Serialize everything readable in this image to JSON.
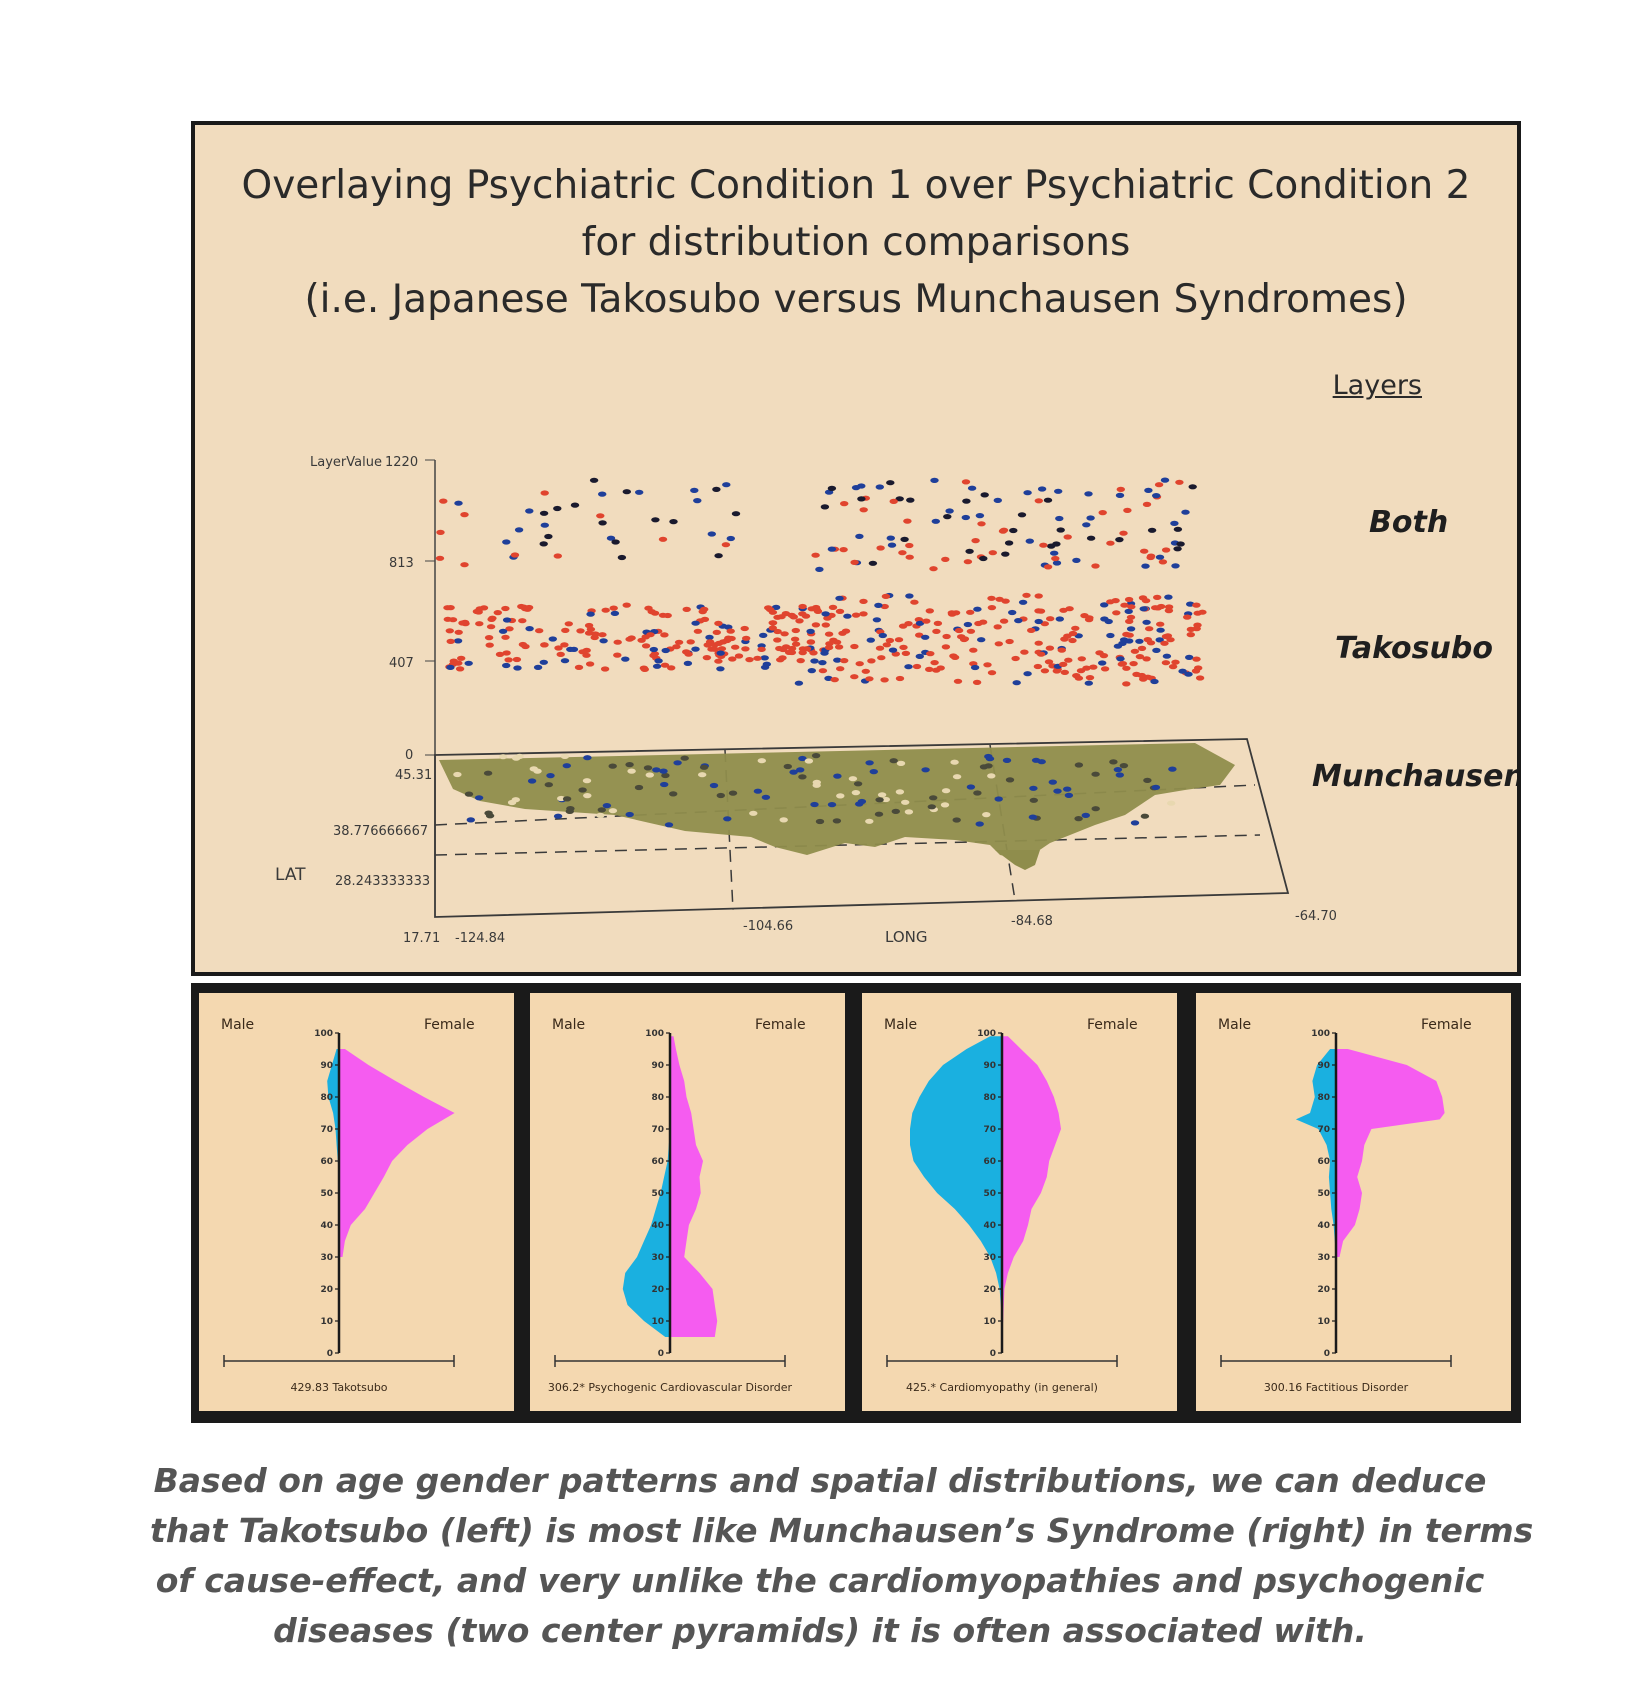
{
  "top_chart": {
    "title_lines": [
      "Overlaying Psychiatric Condition 1 over Psychiatric Condition 2",
      "for distribution comparisons",
      "(i.e. Japanese Takosubo versus Munchausen Syndromes)"
    ],
    "layers_heading": "Layers",
    "layer_labels": [
      "Both",
      "Takosubo",
      "Munchausen"
    ],
    "z_axis_label": "LayerValue",
    "z_ticks": [
      "1220",
      "813",
      "407",
      "0"
    ],
    "lat_label": "LAT",
    "lat_ticks": [
      "45.31",
      "38.776666667",
      "28.243333333",
      "17.71"
    ],
    "long_label": "LONG",
    "long_ticks": [
      "-124.84",
      "-104.66",
      "-84.68",
      "-64.70"
    ],
    "colors": {
      "red": "#e0442e",
      "blue": "#1f3f9a",
      "map": "#8f8d4c"
    }
  },
  "chart_data": [
    {
      "type": "scatter",
      "title": "Overlaying Psychiatric Condition 1 over Psychiatric Condition 2 for distribution comparisons (i.e. Japanese Takosubo versus Munchausen Syndromes)",
      "xlabel": "LONG",
      "ylabel": "LAT",
      "zlabel": "LayerValue",
      "x_ticks": [
        -124.84,
        -104.66,
        -84.68,
        -64.7
      ],
      "y_ticks": [
        17.71,
        28.243333333,
        38.776666667,
        45.31
      ],
      "z_ticks": [
        0,
        407,
        813,
        1220
      ],
      "series": [
        {
          "name": "Both",
          "layer_value": 813
        },
        {
          "name": "Takosubo",
          "layer_value": 407
        },
        {
          "name": "Munchausen",
          "layer_value": 0
        }
      ],
      "legend": "right"
    },
    {
      "type": "area",
      "subtype": "age-sex pyramid",
      "name": "429.83 Takotsubo",
      "y_ticks": [
        0,
        10,
        20,
        30,
        40,
        50,
        60,
        70,
        80,
        90,
        100
      ],
      "left_label": "Male",
      "right_label": "Female",
      "ages": [
        30,
        35,
        40,
        45,
        50,
        55,
        60,
        65,
        70,
        75,
        80,
        85,
        90,
        95
      ],
      "male": [
        0,
        0,
        0,
        0,
        0,
        0,
        0.01,
        0.02,
        0.03,
        0.05,
        0.09,
        0.1,
        0.06,
        0.02
      ],
      "female": [
        0.03,
        0.05,
        0.1,
        0.22,
        0.3,
        0.38,
        0.45,
        0.58,
        0.75,
        0.98,
        0.72,
        0.48,
        0.25,
        0.05
      ]
    },
    {
      "type": "area",
      "subtype": "age-sex pyramid",
      "name": "306.2* Psychogenic Cardiovascular Disorder",
      "y_ticks": [
        0,
        10,
        20,
        30,
        40,
        50,
        60,
        70,
        80,
        90,
        100
      ],
      "left_label": "Male",
      "right_label": "Female",
      "ages": [
        5,
        10,
        15,
        20,
        25,
        30,
        35,
        40,
        45,
        50,
        55,
        60,
        65,
        70,
        75,
        80,
        85,
        90,
        95,
        99
      ],
      "male": [
        0.04,
        0.22,
        0.36,
        0.4,
        0.38,
        0.28,
        0.22,
        0.16,
        0.12,
        0.08,
        0.05,
        0.02,
        0.01,
        0,
        0,
        0,
        0,
        0,
        0,
        0
      ],
      "female": [
        0.38,
        0.4,
        0.38,
        0.36,
        0.25,
        0.12,
        0.14,
        0.16,
        0.22,
        0.26,
        0.25,
        0.28,
        0.22,
        0.2,
        0.18,
        0.14,
        0.12,
        0.08,
        0.05,
        0.03
      ]
    },
    {
      "type": "area",
      "subtype": "age-sex pyramid",
      "name": "425.* Cardiomyopathy (in general)",
      "y_ticks": [
        0,
        10,
        20,
        30,
        40,
        50,
        60,
        70,
        80,
        90,
        100
      ],
      "left_label": "Male",
      "right_label": "Female",
      "ages": [
        5,
        10,
        20,
        25,
        30,
        35,
        40,
        45,
        50,
        55,
        60,
        65,
        70,
        75,
        80,
        85,
        90,
        95,
        99
      ],
      "male": [
        0,
        0,
        0.02,
        0.05,
        0.1,
        0.18,
        0.28,
        0.4,
        0.55,
        0.66,
        0.75,
        0.78,
        0.78,
        0.76,
        0.7,
        0.62,
        0.5,
        0.3,
        0.1
      ],
      "female": [
        0,
        0.01,
        0.02,
        0.05,
        0.1,
        0.18,
        0.22,
        0.25,
        0.33,
        0.38,
        0.4,
        0.45,
        0.5,
        0.48,
        0.44,
        0.38,
        0.3,
        0.16,
        0.05
      ]
    },
    {
      "type": "area",
      "subtype": "age-sex pyramid",
      "name": "300.16 Factitious Disorder",
      "y_ticks": [
        0,
        10,
        20,
        30,
        40,
        50,
        60,
        70,
        80,
        90,
        100
      ],
      "left_label": "Male",
      "right_label": "Female",
      "ages": [
        30,
        35,
        40,
        45,
        50,
        55,
        60,
        65,
        70,
        73,
        75,
        80,
        85,
        90,
        95
      ],
      "male": [
        0,
        0.01,
        0.02,
        0.04,
        0.05,
        0.06,
        0.05,
        0.08,
        0.15,
        0.34,
        0.22,
        0.18,
        0.2,
        0.16,
        0.05
      ],
      "female": [
        0.03,
        0.06,
        0.16,
        0.2,
        0.22,
        0.18,
        0.22,
        0.24,
        0.3,
        0.88,
        0.92,
        0.9,
        0.85,
        0.6,
        0.1
      ]
    }
  ],
  "pyramids": [
    {
      "male_label": "Male",
      "female_label": "Female",
      "caption": "429.83 Takotsubo"
    },
    {
      "male_label": "Male",
      "female_label": "Female",
      "caption": "306.2* Psychogenic Cardiovascular Disorder"
    },
    {
      "male_label": "Male",
      "female_label": "Female",
      "caption": "425.* Cardiomyopathy (in general)"
    },
    {
      "male_label": "Male",
      "female_label": "Female",
      "caption": "300.16 Factitious Disorder"
    }
  ],
  "pyramid_colors": {
    "male": "#1ab0e0",
    "female": "#f55cf0",
    "axis": "#1a1a1a"
  },
  "caption_lines": [
    "Based on age gender patterns and spatial distributions, we can deduce",
    "that Takotsubo (left) is most like Munchausen’s Syndrome (right) in terms",
    "of cause-effect, and very unlike the cardiomyopathies and psychogenic",
    "diseases (two center pyramids) it is often associated with."
  ]
}
